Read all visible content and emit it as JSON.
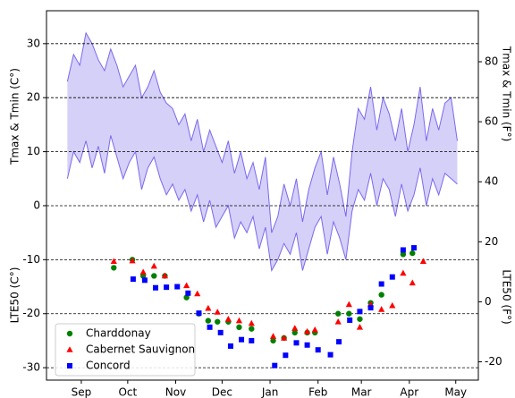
{
  "chart_data": {
    "type": "scatter",
    "ylabel": "Tmax & Tmin (C°)",
    "ylabel_lower": "LTE50 (C°)",
    "y2label": "Tmax & Tmin (F°)",
    "y2label_lower": "LTE50 (F°)",
    "xlim": [
      -22.5,
      256.6
    ],
    "xticks": [
      {
        "value": 0,
        "label": "Sep"
      },
      {
        "value": 30,
        "label": "Oct"
      },
      {
        "value": 61,
        "label": "Nov"
      },
      {
        "value": 91,
        "label": "Dec"
      },
      {
        "value": 122,
        "label": "Jan"
      },
      {
        "value": 153,
        "label": "Feb"
      },
      {
        "value": 181,
        "label": "Mar"
      },
      {
        "value": 212,
        "label": "Apr"
      },
      {
        "value": 242,
        "label": "May"
      }
    ],
    "ylim": [
      -32.3,
      36.1
    ],
    "yticks": [
      -30,
      -20,
      -10,
      0,
      10,
      20,
      30
    ],
    "y2lim": [
      -26.1,
      97.0
    ],
    "y2ticks": [
      -20,
      0,
      20,
      40,
      60,
      80
    ],
    "grid": true,
    "legend": "lower left",
    "band": {
      "color": "#d4d0f7",
      "line_color": "#7b68ee",
      "x": [
        -9,
        -5,
        -1,
        3,
        7,
        11,
        15,
        19,
        23,
        27,
        31,
        35,
        39,
        43,
        47,
        51,
        55,
        59,
        63,
        67,
        71,
        75,
        79,
        83,
        87,
        91,
        95,
        99,
        103,
        107,
        111,
        115,
        119,
        123,
        127,
        131,
        135,
        139,
        143,
        147,
        151,
        155,
        159,
        163,
        167,
        171,
        175,
        179,
        183,
        187,
        191,
        195,
        199,
        203,
        207,
        211,
        215,
        219,
        223,
        227,
        231,
        235,
        239,
        243
      ],
      "upper": [
        23,
        28,
        26,
        32,
        30,
        27,
        25,
        29,
        26,
        22,
        24,
        26,
        20,
        22,
        25,
        21,
        19,
        18,
        15,
        17,
        12,
        16,
        10,
        14,
        11,
        8,
        12,
        6,
        10,
        5,
        8,
        3,
        9,
        -5,
        -2,
        4,
        0,
        5,
        -3,
        3,
        7,
        10,
        2,
        9,
        4,
        -2,
        10,
        18,
        16,
        22,
        14,
        20,
        17,
        12,
        18,
        10,
        15,
        22,
        12,
        18,
        14,
        19,
        20,
        12
      ],
      "lower": [
        5,
        10,
        8,
        12,
        7,
        11,
        6,
        13,
        9,
        5,
        8,
        10,
        3,
        7,
        9,
        5,
        2,
        4,
        1,
        3,
        -1,
        2,
        -3,
        1,
        -4,
        -2,
        0,
        -6,
        -3,
        -5,
        -2,
        -8,
        -4,
        -12,
        -10,
        -7,
        -9,
        -5,
        -12,
        -8,
        -4,
        -2,
        -9,
        -3,
        -6,
        -10,
        -1,
        3,
        1,
        6,
        0,
        5,
        3,
        -2,
        4,
        -1,
        2,
        7,
        0,
        5,
        2,
        6,
        5,
        4
      ]
    },
    "series": [
      {
        "name": "Charddonay",
        "color": "#008000",
        "marker": "circle",
        "x": [
          21,
          33,
          40,
          47,
          54,
          68,
          76,
          82,
          88,
          95,
          102,
          110,
          124,
          131,
          138,
          146,
          151,
          166,
          173,
          180,
          187,
          194,
          208,
          214
        ],
        "values": [
          -11.5,
          -10,
          -13,
          -13,
          -13,
          -17,
          -20,
          -21.3,
          -21.5,
          -21.5,
          -22.5,
          -22.8,
          -25,
          -24.5,
          -23.5,
          -23.5,
          -23.5,
          -20,
          -20,
          -21,
          -18,
          -16.5,
          -9,
          -8.8
        ]
      },
      {
        "name": "Cabernet Sauvignon",
        "color": "#ff0000",
        "marker": "triangle",
        "x": [
          21,
          33,
          40,
          47,
          54,
          68,
          75,
          82,
          88,
          95,
          102,
          110,
          124,
          131,
          138,
          146,
          151,
          166,
          173,
          180,
          187,
          194,
          201,
          208,
          214,
          221
        ],
        "values": [
          -10.3,
          -10.2,
          -12.3,
          -11.2,
          -13,
          -14.8,
          -16.3,
          -19,
          -19.7,
          -21,
          -21.3,
          -21.8,
          -24.2,
          -24.5,
          -22.7,
          -23.3,
          -23,
          -21.5,
          -18.3,
          -22.5,
          -18.3,
          -19.2,
          -18.5,
          -12.5,
          -14.3,
          -10.3
        ]
      },
      {
        "name": "Concord",
        "color": "#0000ff",
        "marker": "square",
        "x": [
          33.5,
          41,
          48,
          55,
          62,
          69,
          76,
          83,
          90,
          96.5,
          103.5,
          110,
          125,
          132,
          139,
          146,
          153,
          161,
          166.5,
          173.5,
          180,
          187,
          194,
          201,
          208,
          215
        ],
        "values": [
          -13.6,
          -13.8,
          -15.2,
          -15.1,
          -15,
          -16.2,
          -19.9,
          -22.5,
          -23.5,
          -26,
          -24.8,
          -25,
          -29.6,
          -27.7,
          -25.4,
          -25.8,
          -26.7,
          -27.6,
          -25.2,
          -21.2,
          -19.6,
          -18.9,
          -14.5,
          -13.2,
          -8.2,
          -7.8
        ]
      }
    ]
  }
}
